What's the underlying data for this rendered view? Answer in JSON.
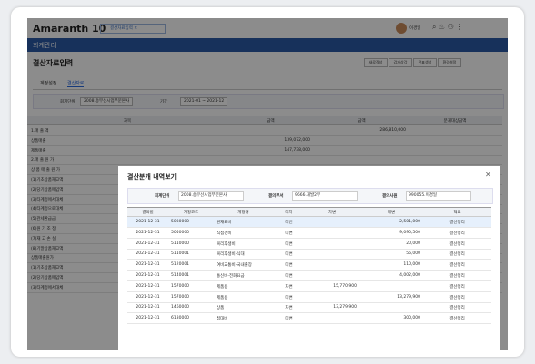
{
  "topbar": {
    "logo": "Amaranth 10",
    "tab": "결산자료입력",
    "user": "이경일"
  },
  "nav": {
    "title": "회계관리"
  },
  "page": {
    "title": "결산자료입력",
    "buttons": [
      "새로작성",
      "감가상각",
      "전표생성",
      "환경설정"
    ],
    "tabs": [
      "계정설정",
      "결산자료"
    ],
    "filters": [
      {
        "label": "회계단위",
        "value": "2008.송무선시업부문본사"
      },
      {
        "label": "기간",
        "value": "2021-01 ~ 2021-12"
      }
    ]
  },
  "table": {
    "headers": [
      "과목",
      "금액",
      "금액",
      "분개대상금액"
    ],
    "rows": [
      [
        "1.매 출 액",
        null,
        "286,810,000",
        null
      ],
      [
        "상품매출",
        "139,072,000",
        null,
        null
      ],
      [
        "제품매출",
        "147,738,000",
        null,
        null
      ],
      [
        "2.매 출 원 가",
        null,
        null,
        null
      ],
      [
        "상 품 매 출 원 가",
        null,
        null,
        null
      ],
      [
        "(1)기초상품재고액",
        null,
        null,
        null
      ],
      [
        "(2)당기상품매입액",
        null,
        null,
        null
      ],
      [
        "(3)타계정에서대체",
        null,
        null,
        null
      ],
      [
        "(4)타계정으로대체",
        null,
        null,
        null
      ],
      [
        "(5)관세환급금",
        null,
        null,
        null
      ],
      [
        "(6)원 가 조 정",
        null,
        null,
        null
      ],
      [
        "(7)재 고 손 실",
        null,
        null,
        null
      ],
      [
        "(8)기말상품재고액",
        null,
        null,
        null
      ],
      [
        "상품매출원가",
        null,
        null,
        null
      ],
      [
        "(1)기초상품재고액",
        null,
        null,
        null
      ],
      [
        "(2)당기상품매입액",
        null,
        null,
        null
      ],
      [
        "(3)타계정에서대체",
        null,
        null,
        null
      ]
    ]
  },
  "modal": {
    "title": "결산분개 내역보기",
    "info": [
      {
        "label": "회계단위",
        "value": "2008.송무선시업부문본사"
      },
      {
        "label": "결의부서",
        "value": "9666.개발2부"
      },
      {
        "label": "결의사원",
        "value": "990055.이경일"
      }
    ],
    "table": {
      "headers": [
        "결의일",
        "계정코드",
        "계정명",
        "대차",
        "차변",
        "대변",
        "적요"
      ],
      "rows": [
        [
          "2021-12-31",
          "5030000",
          "원재료비",
          "대변",
          null,
          "2,501,000",
          "결산정리"
        ],
        [
          "2021-12-31",
          "5050000",
          "직접경비",
          "대변",
          null,
          "9,090,500",
          "결산정리"
        ],
        [
          "2021-12-31",
          "5110000",
          "복리후생비",
          "대변",
          null,
          "20,000",
          "결산정리"
        ],
        [
          "2021-12-31",
          "5110001",
          "복리후생비-식대",
          "대변",
          null,
          "56,000",
          "결산정리"
        ],
        [
          "2021-12-31",
          "5120001",
          "여비교통비-국내출장",
          "대변",
          null,
          "110,000",
          "결산정리"
        ],
        [
          "2021-12-31",
          "5140001",
          "통신비-전화요금",
          "대변",
          null,
          "4,002,000",
          "결산정리"
        ],
        [
          "2021-12-31",
          "1570000",
          "제품용",
          "차변",
          "15,770,900",
          null,
          "결산정리"
        ],
        [
          "2021-12-31",
          "1570000",
          "제품용",
          "대변",
          null,
          "13,279,900",
          "결산정리"
        ],
        [
          "2021-12-31",
          "1460000",
          "상품",
          "차변",
          "13,279,900",
          null,
          "결산정리"
        ],
        [
          "2021-12-31",
          "6130000",
          "접대비",
          "대변",
          null,
          "300,000",
          "결산정리"
        ]
      ]
    }
  }
}
